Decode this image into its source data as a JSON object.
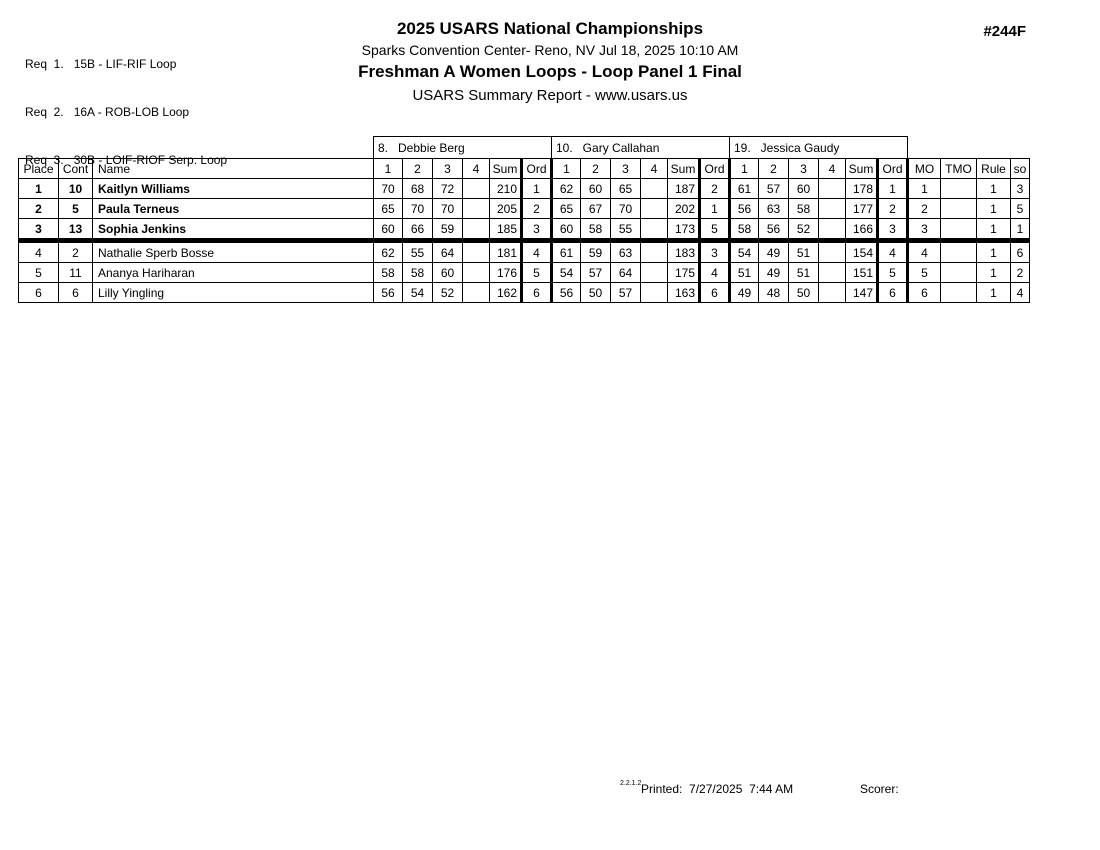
{
  "requirements": [
    "Req  1.   15B - LIF-RIF Loop",
    "Req  2.   16A - ROB-LOB Loop",
    "Req  3.   30B - LOIF-RIOF Serp. Loop"
  ],
  "header": {
    "title": "2025 USARS National Championships",
    "venue": "Sparks Convention Center- Reno, NV  Jul 18, 2025  10:10 AM",
    "event": "Freshman A Women Loops - Loop Panel 1 Final",
    "summary": "USARS Summary Report - www.usars.us",
    "number": "#244F"
  },
  "table": {
    "judges": [
      "8.   Debbie Berg",
      "10.   Gary Callahan",
      "19.   Jessica Gaudy"
    ],
    "columns": {
      "place": "Place",
      "cont": "Cont",
      "name": "Name",
      "scores": [
        "1",
        "2",
        "3",
        "4"
      ],
      "sum": "Sum",
      "ord": "Ord",
      "finals": [
        "MO",
        "TMO",
        "Rule",
        "so"
      ]
    },
    "rows": [
      {
        "place": "1",
        "cont": "10",
        "name": "Kaitlyn Williams",
        "bold": true,
        "judges": [
          {
            "scores": [
              "70",
              "68",
              "72",
              ""
            ],
            "sum": "210",
            "ord": "1"
          },
          {
            "scores": [
              "62",
              "60",
              "65",
              ""
            ],
            "sum": "187",
            "ord": "2"
          },
          {
            "scores": [
              "61",
              "57",
              "60",
              ""
            ],
            "sum": "178",
            "ord": "1"
          }
        ],
        "mo": "1",
        "tmo": "",
        "rule": "1",
        "so": "3"
      },
      {
        "place": "2",
        "cont": "5",
        "name": "Paula Terneus",
        "bold": true,
        "judges": [
          {
            "scores": [
              "65",
              "70",
              "70",
              ""
            ],
            "sum": "205",
            "ord": "2"
          },
          {
            "scores": [
              "65",
              "67",
              "70",
              ""
            ],
            "sum": "202",
            "ord": "1"
          },
          {
            "scores": [
              "56",
              "63",
              "58",
              ""
            ],
            "sum": "177",
            "ord": "2"
          }
        ],
        "mo": "2",
        "tmo": "",
        "rule": "1",
        "so": "5"
      },
      {
        "place": "3",
        "cont": "13",
        "name": "Sophia Jenkins",
        "bold": true,
        "judges": [
          {
            "scores": [
              "60",
              "66",
              "59",
              ""
            ],
            "sum": "185",
            "ord": "3"
          },
          {
            "scores": [
              "60",
              "58",
              "55",
              ""
            ],
            "sum": "173",
            "ord": "5"
          },
          {
            "scores": [
              "58",
              "56",
              "52",
              ""
            ],
            "sum": "166",
            "ord": "3"
          }
        ],
        "mo": "3",
        "tmo": "",
        "rule": "1",
        "so": "1"
      },
      {
        "place": "4",
        "cont": "2",
        "name": "Nathalie Sperb Bosse",
        "bold": false,
        "judges": [
          {
            "scores": [
              "62",
              "55",
              "64",
              ""
            ],
            "sum": "181",
            "ord": "4"
          },
          {
            "scores": [
              "61",
              "59",
              "63",
              ""
            ],
            "sum": "183",
            "ord": "3"
          },
          {
            "scores": [
              "54",
              "49",
              "51",
              ""
            ],
            "sum": "154",
            "ord": "4"
          }
        ],
        "mo": "4",
        "tmo": "",
        "rule": "1",
        "so": "6"
      },
      {
        "place": "5",
        "cont": "11",
        "name": "Ananya Hariharan",
        "bold": false,
        "judges": [
          {
            "scores": [
              "58",
              "58",
              "60",
              ""
            ],
            "sum": "176",
            "ord": "5"
          },
          {
            "scores": [
              "54",
              "57",
              "64",
              ""
            ],
            "sum": "175",
            "ord": "4"
          },
          {
            "scores": [
              "51",
              "49",
              "51",
              ""
            ],
            "sum": "151",
            "ord": "5"
          }
        ],
        "mo": "5",
        "tmo": "",
        "rule": "1",
        "so": "2"
      },
      {
        "place": "6",
        "cont": "6",
        "name": "Lilly Yingling",
        "bold": false,
        "judges": [
          {
            "scores": [
              "56",
              "54",
              "52",
              ""
            ],
            "sum": "162",
            "ord": "6"
          },
          {
            "scores": [
              "56",
              "50",
              "57",
              ""
            ],
            "sum": "163",
            "ord": "6"
          },
          {
            "scores": [
              "49",
              "48",
              "50",
              ""
            ],
            "sum": "147",
            "ord": "6"
          }
        ],
        "mo": "6",
        "tmo": "",
        "rule": "1",
        "so": "4"
      }
    ],
    "cut_after_row": 3
  },
  "footer": {
    "version": "2.2.1.2",
    "printed": "Printed:  7/27/2025  7:44 AM",
    "scorer": "Scorer:"
  }
}
